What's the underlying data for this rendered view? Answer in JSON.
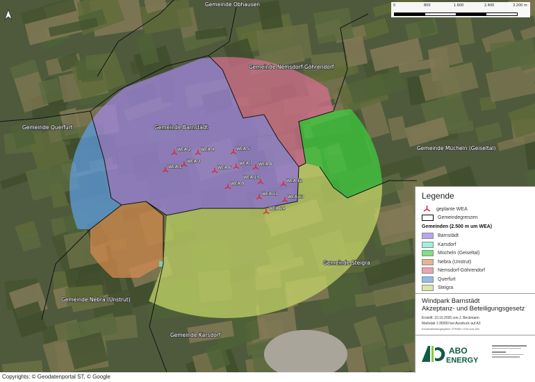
{
  "scalebar": {
    "ticks": [
      "0",
      "800",
      "1.600",
      "2.400",
      "3.200 m"
    ]
  },
  "north_arrow": {
    "icon": "north-arrow-icon"
  },
  "municipality_labels": [
    {
      "id": "obhausen",
      "text": "Gemeinde Obhausen"
    },
    {
      "id": "nemsdorf",
      "text": "Gemeinde Nemsdorf-Göhrendorf"
    },
    {
      "id": "querfurt",
      "text": "Gemeinde Querfurt"
    },
    {
      "id": "barnstaedt",
      "text": "Gemeinde Barnstädt"
    },
    {
      "id": "muecheln",
      "text": "Gemeinde Mücheln (Geiseltal)"
    },
    {
      "id": "steigra",
      "text": "Gemeinde Steigra"
    },
    {
      "id": "nebra",
      "text": "Gemeinde Nebra (Unstrut)"
    },
    {
      "id": "karsdorf",
      "text": "Gemeinde Karsdorf"
    }
  ],
  "turbines": [
    "WEA 1",
    "WEA 2",
    "WEA 3",
    "WEA 4",
    "WEA 5",
    "WEA 6",
    "WEA 7",
    "WEA 8",
    "WEA 9",
    "WEA 10",
    "WEA 11",
    "WEA 12",
    "WEA 13",
    "WEA 14"
  ],
  "legend": {
    "title": "Legende",
    "items": [
      {
        "label": "geplante WEA",
        "icon": "wind-turbine-icon",
        "color": "#e8202a"
      },
      {
        "label": "Gemeindegrenzen",
        "color": "#000000"
      }
    ],
    "section": "Gemeinden (2.500 m um WEA)",
    "municipalities": [
      {
        "label": "Barnstädt",
        "color": "#b9a7ec"
      },
      {
        "label": "Karsdorf",
        "color": "#9ff2d8"
      },
      {
        "label": "Mücheln (Geiseltal)",
        "color": "#7fe07f"
      },
      {
        "label": "Nebra (Unstrut)",
        "color": "#e6b48f"
      },
      {
        "label": "Nemsdorf-Göhrendorf",
        "color": "#eea3b7"
      },
      {
        "label": "Querfurt",
        "color": "#8fbcee"
      },
      {
        "label": "Steigra",
        "color": "#dde6a6"
      }
    ]
  },
  "title_block": {
    "title1": "Windpark Barnstädt",
    "title2": "Akzeptanz- und Beteiligungsgesetz",
    "created": "Erstellt: 10.10.2025 von J. Beckmann",
    "scale": "Maßstab 1:35000  bei Ausdruck auf A3",
    "crs": "Koordinatenbezugssystem: ETRS89 / UTM zone 32N"
  },
  "logo": {
    "text1": "ABO",
    "text2": "ENERGY",
    "color": "#0f5c45",
    "accent": "#8cc63f"
  },
  "copyright": "Copyrights: © Geodatenportal ST, © Google"
}
